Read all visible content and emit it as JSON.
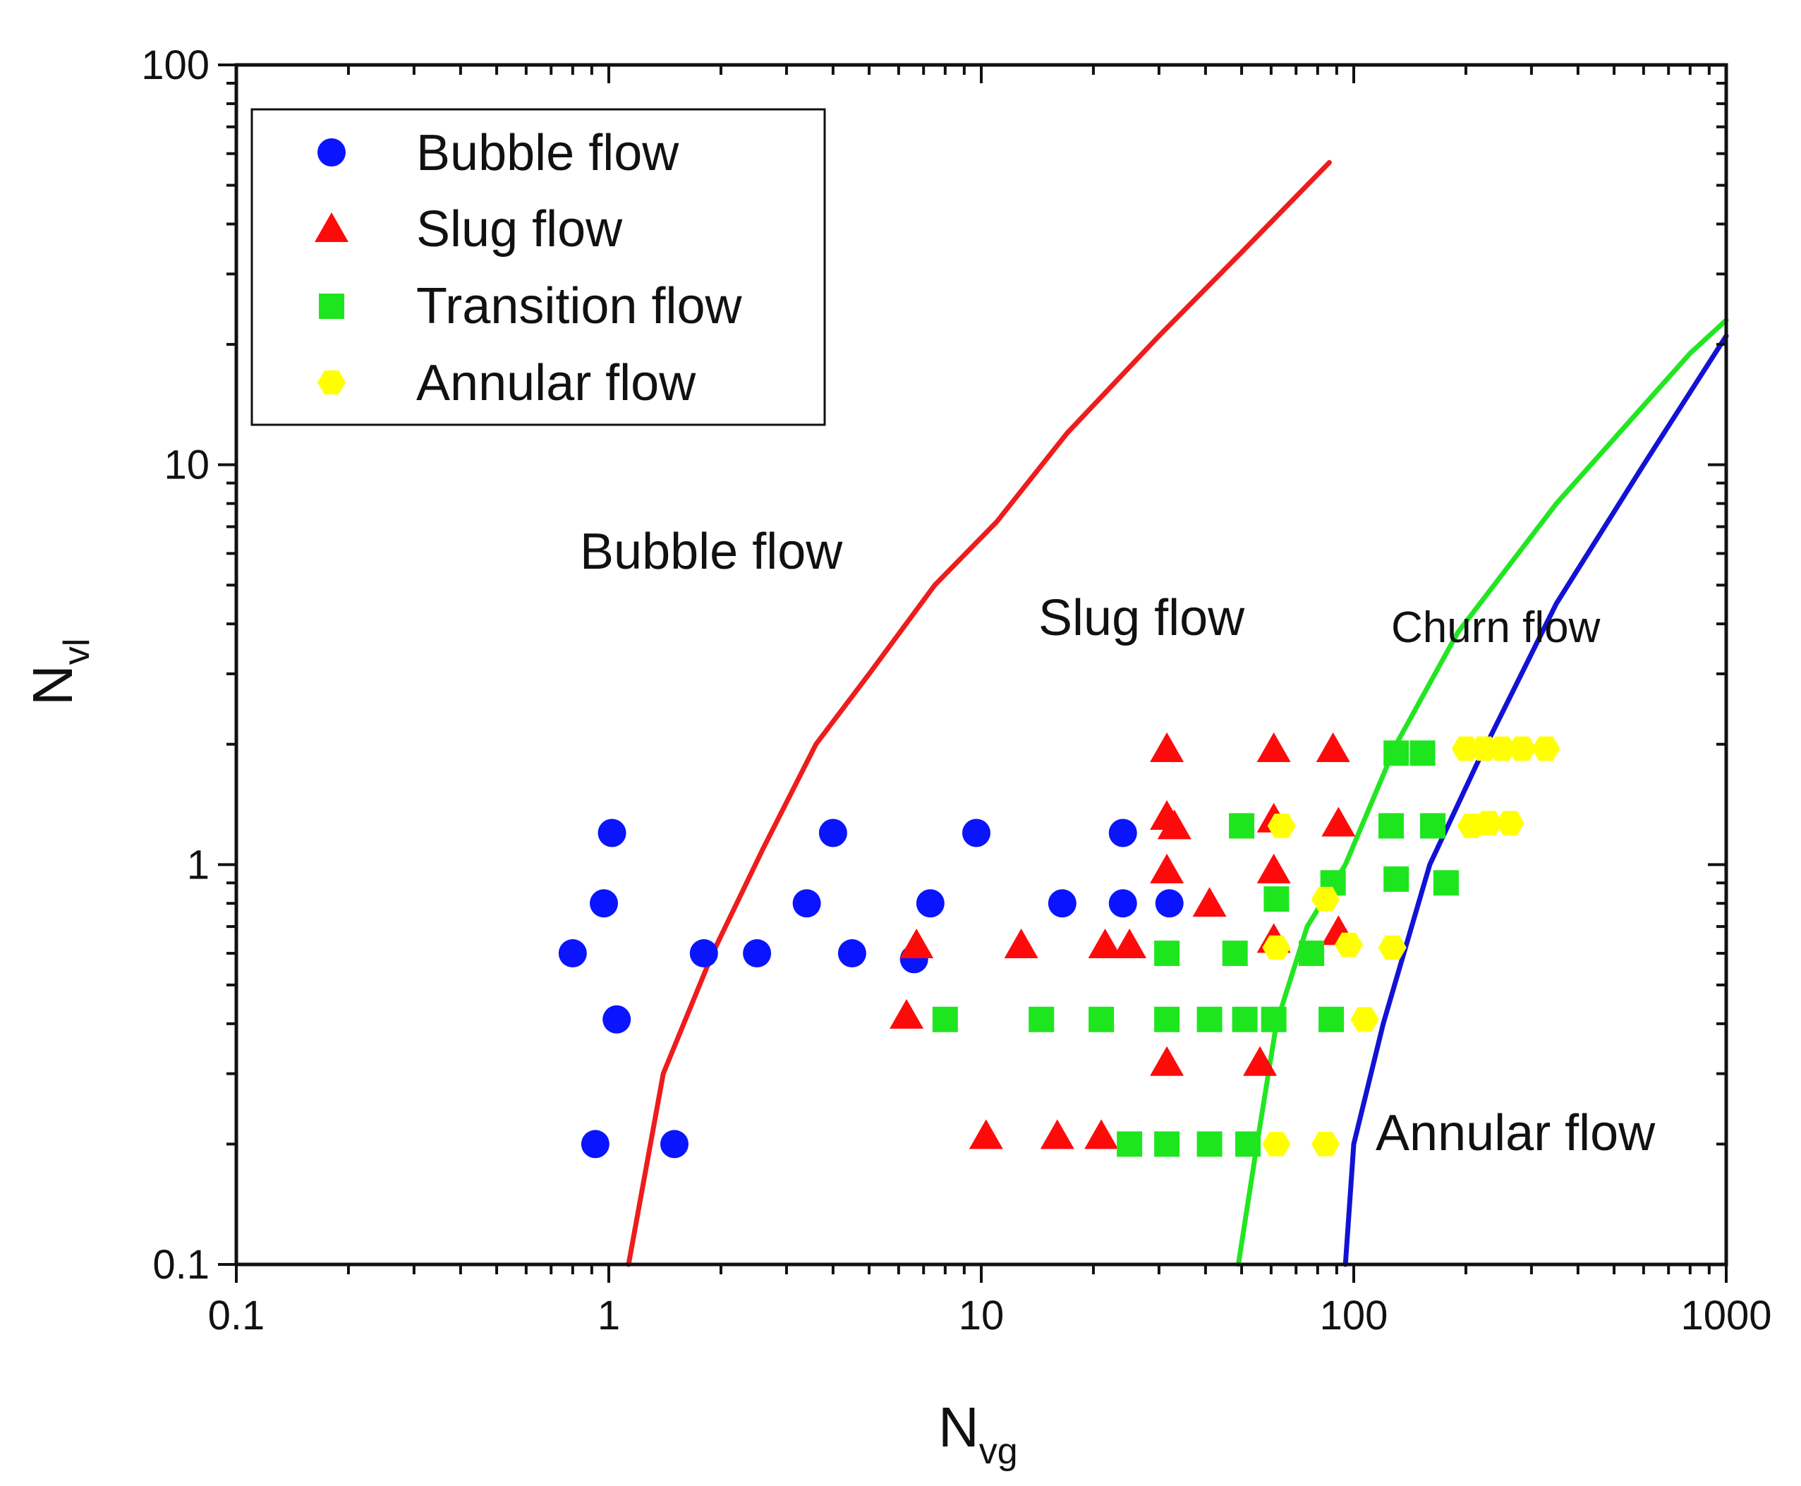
{
  "chart_data": {
    "type": "scatter",
    "xscale": "log",
    "yscale": "log",
    "xlim": [
      0.1,
      1000
    ],
    "ylim": [
      0.1,
      100
    ],
    "x_ticks": [
      {
        "value": 0.1,
        "label": "0.1"
      },
      {
        "value": 1,
        "label": "1"
      },
      {
        "value": 10,
        "label": "10"
      },
      {
        "value": 100,
        "label": "100"
      },
      {
        "value": 1000,
        "label": "1000"
      }
    ],
    "y_ticks": [
      {
        "value": 0.1,
        "label": "0.1"
      },
      {
        "value": 1,
        "label": "1"
      },
      {
        "value": 10,
        "label": "10"
      },
      {
        "value": 100,
        "label": "100"
      }
    ],
    "xlabel": {
      "main": "N",
      "sub": "vg"
    },
    "ylabel": {
      "main": "N",
      "sub": "vl"
    },
    "legend_position": "top-left",
    "series": [
      {
        "name": "Bubble flow",
        "marker": "circle",
        "color": "#0a14ff",
        "points": [
          [
            0.8,
            0.6
          ],
          [
            0.92,
            0.2
          ],
          [
            0.97,
            0.8
          ],
          [
            1.02,
            1.2
          ],
          [
            1.05,
            0.41
          ],
          [
            1.5,
            0.2
          ],
          [
            1.8,
            0.6
          ],
          [
            2.5,
            0.6
          ],
          [
            3.4,
            0.8
          ],
          [
            4.0,
            1.2
          ],
          [
            4.5,
            0.6
          ],
          [
            6.6,
            0.58
          ],
          [
            7.3,
            0.8
          ],
          [
            9.7,
            1.2
          ],
          [
            16.5,
            0.8
          ],
          [
            24,
            1.2
          ],
          [
            24,
            0.8
          ],
          [
            32,
            0.8
          ]
        ]
      },
      {
        "name": "Slug flow",
        "marker": "triangle",
        "color": "#ff0a0a",
        "points": [
          [
            6.3,
            0.42
          ],
          [
            6.7,
            0.63
          ],
          [
            10.3,
            0.21
          ],
          [
            12.8,
            0.63
          ],
          [
            16,
            0.21
          ],
          [
            21,
            0.21
          ],
          [
            21.5,
            0.63
          ],
          [
            25,
            0.63
          ],
          [
            31.5,
            1.95
          ],
          [
            31.5,
            1.32
          ],
          [
            31.5,
            0.97
          ],
          [
            31.5,
            0.32
          ],
          [
            33,
            1.25
          ],
          [
            41,
            0.8
          ],
          [
            56,
            0.32
          ],
          [
            61,
            1.95
          ],
          [
            61,
            1.3
          ],
          [
            61,
            0.97
          ],
          [
            61,
            0.65
          ],
          [
            88,
            1.95
          ],
          [
            91,
            1.27
          ],
          [
            91,
            0.68
          ]
        ]
      },
      {
        "name": "Transition flow",
        "marker": "square",
        "color": "#1ee61e",
        "points": [
          [
            8,
            0.41
          ],
          [
            14.5,
            0.41
          ],
          [
            21,
            0.41
          ],
          [
            25,
            0.2
          ],
          [
            31.5,
            0.2
          ],
          [
            31.5,
            0.41
          ],
          [
            31.5,
            0.6
          ],
          [
            41,
            0.2
          ],
          [
            41,
            0.41
          ],
          [
            48,
            0.6
          ],
          [
            50,
            1.25
          ],
          [
            51,
            0.41
          ],
          [
            52,
            0.2
          ],
          [
            61,
            0.41
          ],
          [
            62,
            0.82
          ],
          [
            77,
            0.6
          ],
          [
            87,
            0.41
          ],
          [
            88,
            0.9
          ],
          [
            126,
            1.25
          ],
          [
            130,
            0.92
          ],
          [
            130,
            1.9
          ],
          [
            153,
            1.9
          ],
          [
            163,
            1.25
          ],
          [
            177,
            0.9
          ]
        ]
      },
      {
        "name": "Annular flow",
        "marker": "hexagon",
        "color": "#ffff00",
        "points": [
          [
            62,
            0.2
          ],
          [
            62,
            0.62
          ],
          [
            64,
            1.25
          ],
          [
            84,
            0.2
          ],
          [
            84,
            0.82
          ],
          [
            97,
            0.63
          ],
          [
            107,
            0.41
          ],
          [
            127,
            0.62
          ],
          [
            200,
            1.95
          ],
          [
            207,
            1.25
          ],
          [
            224,
            1.95
          ],
          [
            230,
            1.27
          ],
          [
            250,
            1.95
          ],
          [
            263,
            1.27
          ],
          [
            283,
            1.95
          ],
          [
            328,
            1.95
          ]
        ]
      }
    ],
    "lines": [
      {
        "name": "bubble-slug-boundary",
        "color": "#ee1c1c",
        "points": [
          [
            1.13,
            0.1
          ],
          [
            1.4,
            0.3
          ],
          [
            1.9,
            0.6
          ],
          [
            2.6,
            1.1
          ],
          [
            3.6,
            2.0
          ],
          [
            5,
            3.0
          ],
          [
            7.5,
            5.0
          ],
          [
            11,
            7.2
          ],
          [
            17,
            12
          ],
          [
            30,
            21
          ],
          [
            50,
            34
          ],
          [
            86,
            57
          ]
        ]
      },
      {
        "name": "slug-churn-boundary",
        "color": "#22e622",
        "points": [
          [
            49,
            0.1
          ],
          [
            55,
            0.2
          ],
          [
            62,
            0.4
          ],
          [
            75,
            0.7
          ],
          [
            95,
            1.0
          ],
          [
            130,
            2.0
          ],
          [
            190,
            3.8
          ],
          [
            350,
            8
          ],
          [
            800,
            19
          ],
          [
            1000,
            23
          ]
        ]
      },
      {
        "name": "churn-annular-boundary",
        "color": "#1212d6",
        "points": [
          [
            95,
            0.1
          ],
          [
            100,
            0.2
          ],
          [
            120,
            0.4
          ],
          [
            160,
            1.0
          ],
          [
            215,
            1.8
          ],
          [
            350,
            4.5
          ],
          [
            600,
            10
          ],
          [
            1000,
            21
          ]
        ]
      }
    ],
    "annotations": [
      {
        "text": "Bubble flow",
        "style": "large"
      },
      {
        "text": "Slug flow",
        "style": "large"
      },
      {
        "text": "Churn flow",
        "style": "small"
      },
      {
        "text": "Annular flow",
        "style": "large"
      }
    ]
  }
}
